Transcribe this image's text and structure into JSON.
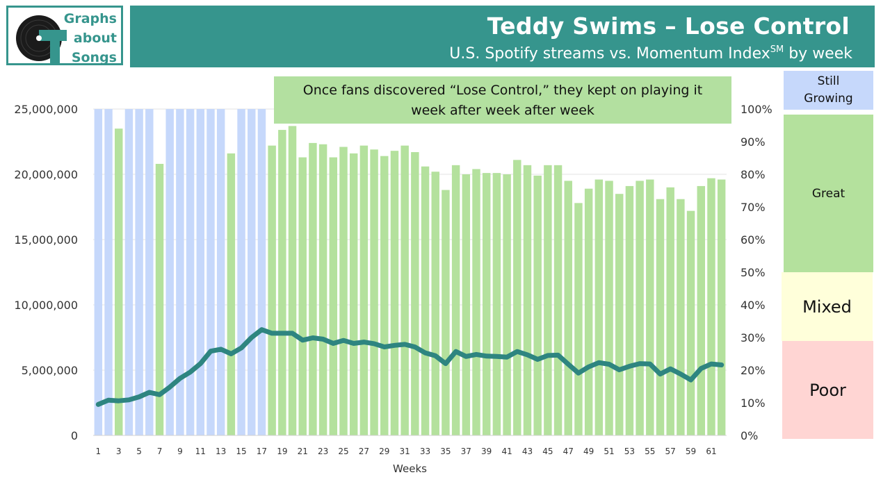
{
  "logo": {
    "lines": [
      "Graphs",
      "about",
      "Songs"
    ]
  },
  "header": {
    "title": "Teddy Swims – Lose Control",
    "subtitle": "U.S. Spotify streams vs. Momentum Index",
    "subtitle_sup": "SM",
    "subtitle_tail": " by week"
  },
  "callout": {
    "line1": "Once fans discovered “Lose Control,” they kept on playing it",
    "line2": "week after week after week"
  },
  "bands": {
    "still_growing_1": "Still",
    "still_growing_2": "Growing",
    "great": "Great",
    "mixed": "Mixed",
    "poor": "Poor"
  },
  "colors": {
    "header": "#36958d",
    "still_growing": "#c6d8fb",
    "great": "#b4e19d",
    "mixed": "#ffffda",
    "poor": "#ffd5d3",
    "line": "#2e8580"
  },
  "chart_data": {
    "type": "bar",
    "xlabel": "Weeks",
    "x_tick_labels": [
      "1",
      "3",
      "5",
      "7",
      "9",
      "11",
      "13",
      "15",
      "17",
      "19",
      "21",
      "23",
      "25",
      "27",
      "29",
      "31",
      "33",
      "35",
      "37",
      "39",
      "41",
      "43",
      "45",
      "47",
      "49",
      "51",
      "53",
      "55",
      "57",
      "59",
      "61"
    ],
    "left_axis": {
      "ylim": [
        0,
        25000000
      ],
      "tick_labels": [
        "0",
        "5,000,000",
        "10,000,000",
        "15,000,000",
        "20,000,000",
        "25,000,000"
      ]
    },
    "right_axis": {
      "ylim": [
        0,
        100
      ],
      "tick_labels": [
        "0%",
        "10%",
        "20%",
        "30%",
        "40%",
        "50%",
        "60%",
        "70%",
        "80%",
        "90%",
        "100%"
      ]
    },
    "gridlines": true,
    "weeks": [
      1,
      2,
      3,
      4,
      5,
      6,
      7,
      8,
      9,
      10,
      11,
      12,
      13,
      14,
      15,
      16,
      17,
      18,
      19,
      20,
      21,
      22,
      23,
      24,
      25,
      26,
      27,
      28,
      29,
      30,
      31,
      32,
      33,
      34,
      35,
      36,
      37,
      38,
      39,
      40,
      41,
      42,
      43,
      44,
      45,
      46,
      47,
      48,
      49,
      50,
      51,
      52,
      53,
      54,
      55,
      56,
      57,
      58,
      59,
      60,
      61,
      62
    ],
    "series": [
      {
        "kind": "bars",
        "axis": "left",
        "values": [
          25000000,
          25000000,
          23500000,
          25000000,
          25000000,
          25000000,
          20800000,
          25000000,
          25000000,
          25000000,
          25000000,
          25000000,
          25000000,
          21600000,
          25000000,
          25000000,
          25000000,
          22200000,
          23400000,
          23700000,
          21300000,
          22400000,
          22300000,
          21300000,
          22100000,
          21600000,
          22200000,
          21900000,
          21400000,
          21800000,
          22200000,
          21700000,
          20600000,
          20200000,
          18800000,
          20700000,
          20000000,
          20400000,
          20100000,
          20100000,
          20000000,
          21100000,
          20700000,
          19900000,
          20700000,
          20700000,
          19500000,
          17800000,
          18900000,
          19600000,
          19500000,
          18500000,
          19100000,
          19500000,
          19600000,
          18100000,
          19000000,
          18100000,
          17200000,
          19100000,
          19700000,
          19600000
        ],
        "status": [
          "Still Growing",
          "Still Growing",
          "Great",
          "Still Growing",
          "Still Growing",
          "Still Growing",
          "Great",
          "Still Growing",
          "Still Growing",
          "Still Growing",
          "Still Growing",
          "Still Growing",
          "Still Growing",
          "Great",
          "Still Growing",
          "Still Growing",
          "Still Growing",
          "Great",
          "Great",
          "Great",
          "Great",
          "Great",
          "Great",
          "Great",
          "Great",
          "Great",
          "Great",
          "Great",
          "Great",
          "Great",
          "Great",
          "Great",
          "Great",
          "Great",
          "Great",
          "Great",
          "Great",
          "Great",
          "Great",
          "Great",
          "Great",
          "Great",
          "Great",
          "Great",
          "Great",
          "Great",
          "Great",
          "Great",
          "Great",
          "Great",
          "Great",
          "Great",
          "Great",
          "Great",
          "Great",
          "Great",
          "Great",
          "Great",
          "Great",
          "Great",
          "Great",
          "Great"
        ]
      },
      {
        "kind": "line",
        "name": "Momentum Index",
        "axis": "right",
        "values": [
          9.5,
          10.8,
          10.6,
          10.9,
          11.8,
          13.2,
          12.5,
          14.8,
          17.5,
          19.4,
          22,
          25.8,
          26.4,
          25,
          26.8,
          30,
          32.4,
          31.3,
          31.3,
          31.3,
          29.2,
          29.9,
          29.5,
          28.2,
          29.1,
          28.2,
          28.6,
          28.1,
          27.1,
          27.6,
          27.9,
          27.1,
          25.3,
          24.4,
          22,
          25.7,
          24.2,
          24.8,
          24.3,
          24.2,
          24,
          25.7,
          24.7,
          23.3,
          24.5,
          24.6,
          21.8,
          19.1,
          21,
          22.3,
          21.8,
          20.1,
          21.2,
          22,
          21.9,
          18.8,
          20.4,
          18.8,
          17,
          20.5,
          21.9,
          21.6
        ]
      }
    ]
  }
}
